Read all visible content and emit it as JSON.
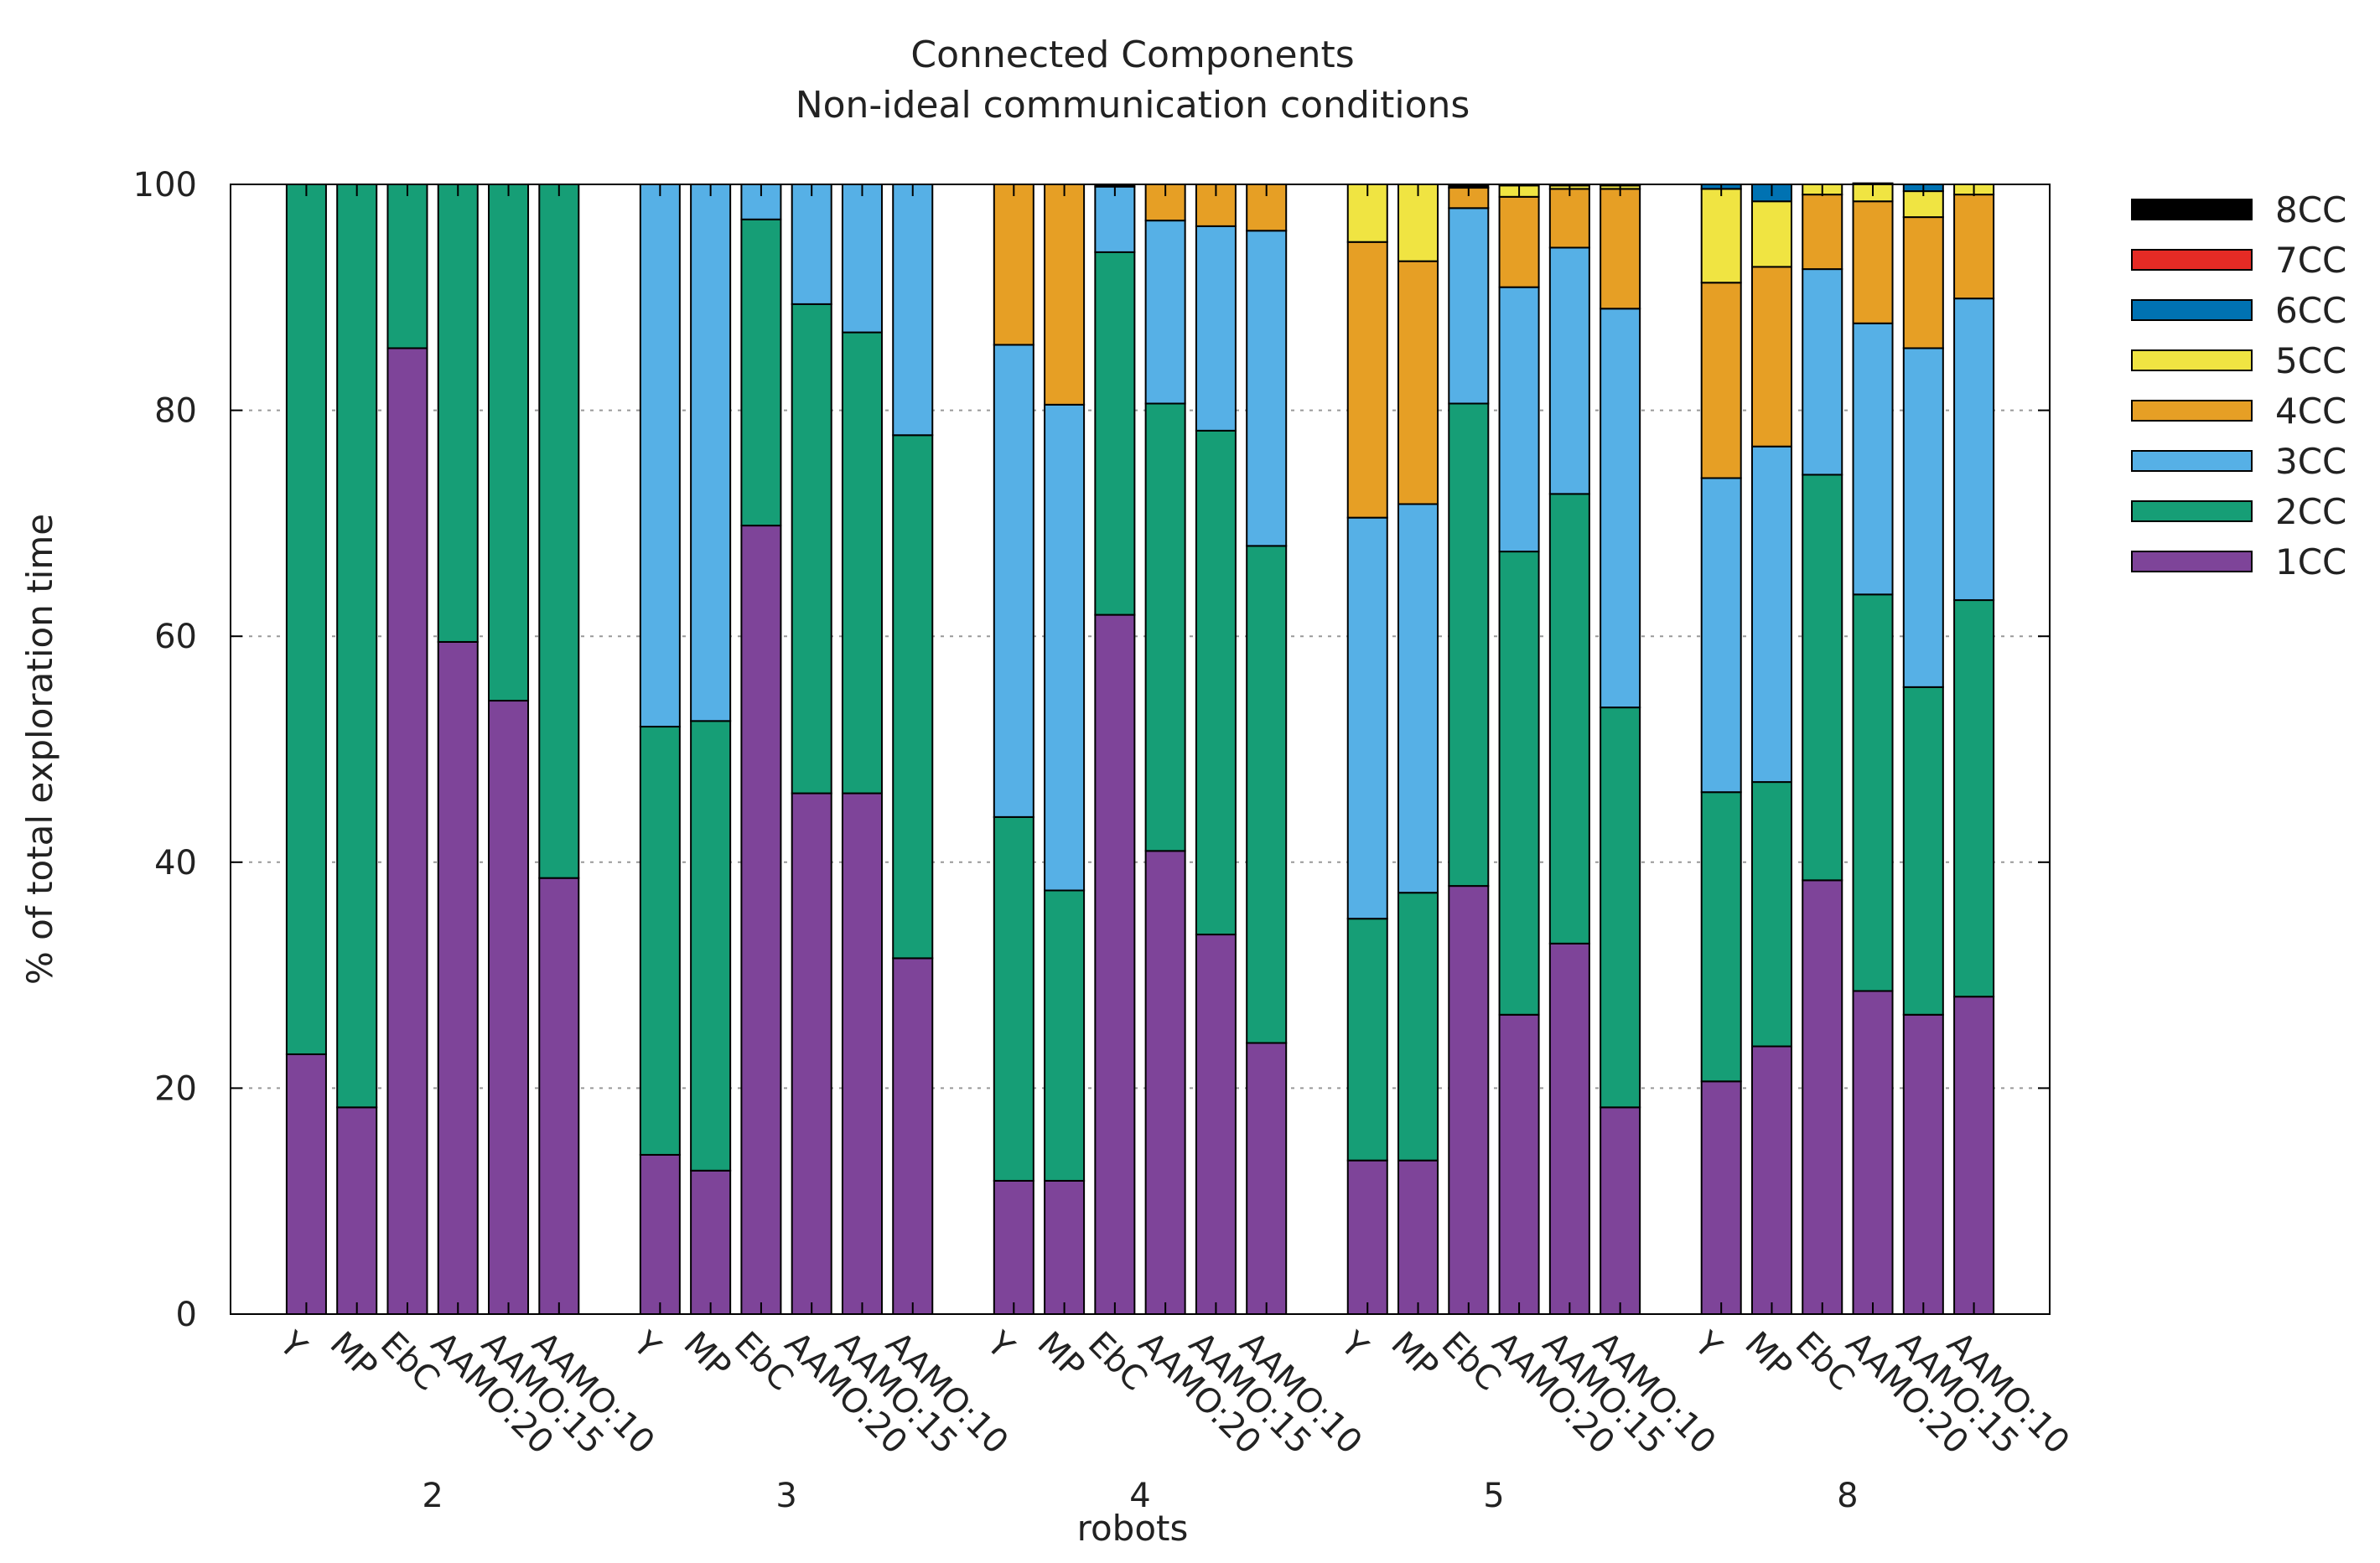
{
  "chart_data": {
    "type": "bar",
    "stacked": true,
    "title": "Connected Components",
    "subtitle": "Non-ideal communication conditions",
    "xlabel": "robots",
    "ylabel": "% of total exploration time",
    "ylim": [
      0,
      100
    ],
    "yticks": [
      0,
      20,
      40,
      60,
      80,
      100
    ],
    "grid": true,
    "legend_position": "right",
    "categories": [
      "Y",
      "MP",
      "EbC",
      "AAMO:20",
      "AAMO:15",
      "AAMO:10"
    ],
    "series": [
      {
        "name": "1CC",
        "color": "#7e4499"
      },
      {
        "name": "2CC",
        "color": "#169e76"
      },
      {
        "name": "3CC",
        "color": "#56b0e6"
      },
      {
        "name": "4CC",
        "color": "#e69f25"
      },
      {
        "name": "5CC",
        "color": "#f0e442"
      },
      {
        "name": "6CC",
        "color": "#0072b2"
      },
      {
        "name": "7CC",
        "color": "#e52b25"
      },
      {
        "name": "8CC",
        "color": "#000000"
      }
    ],
    "groups": [
      {
        "label": "2",
        "bars": [
          [
            23,
            77,
            0,
            0,
            0,
            0,
            0,
            0
          ],
          [
            18.3,
            81.7,
            0,
            0,
            0,
            0,
            0,
            0
          ],
          [
            85.5,
            14.5,
            0,
            0,
            0,
            0,
            0,
            0
          ],
          [
            59.5,
            40.5,
            0,
            0,
            0,
            0,
            0,
            0
          ],
          [
            54.3,
            45.7,
            0,
            0,
            0,
            0,
            0,
            0
          ],
          [
            38.6,
            61.4,
            0,
            0,
            0,
            0,
            0,
            0
          ]
        ]
      },
      {
        "label": "3",
        "bars": [
          [
            14.1,
            37.9,
            48,
            0,
            0,
            0,
            0,
            0
          ],
          [
            12.7,
            39.8,
            47.5,
            0,
            0,
            0,
            0,
            0
          ],
          [
            69.8,
            27.1,
            3.1,
            0,
            0,
            0,
            0,
            0
          ],
          [
            46.1,
            43.3,
            10.6,
            0,
            0,
            0,
            0,
            0
          ],
          [
            46.1,
            40.8,
            13.1,
            0,
            0,
            0,
            0,
            0
          ],
          [
            31.5,
            46.3,
            22.2,
            0,
            0,
            0,
            0,
            0
          ]
        ]
      },
      {
        "label": "4",
        "bars": [
          [
            11.8,
            32.2,
            41.8,
            14.2,
            0,
            0,
            0,
            0
          ],
          [
            11.8,
            25.7,
            43,
            19.5,
            0,
            0,
            0,
            0
          ],
          [
            61.9,
            32.1,
            5.8,
            0,
            0,
            0,
            0,
            0.2
          ],
          [
            41,
            39.6,
            16.2,
            3.2,
            0,
            0,
            0,
            0
          ],
          [
            33.6,
            44.6,
            18.1,
            3.7,
            0,
            0,
            0,
            0
          ],
          [
            24,
            44,
            27.9,
            4.1,
            0,
            0,
            0,
            0
          ]
        ]
      },
      {
        "label": "5",
        "bars": [
          [
            13.6,
            21.4,
            35.5,
            24.4,
            5.1,
            0,
            0,
            0
          ],
          [
            13.6,
            23.7,
            34.4,
            21.5,
            6.8,
            0,
            0,
            0
          ],
          [
            37.9,
            42.7,
            17.3,
            1.8,
            0,
            0,
            0,
            0.3
          ],
          [
            26.5,
            41,
            23.4,
            8,
            1,
            0,
            0,
            0.1
          ],
          [
            32.8,
            39.8,
            21.8,
            5.2,
            0.3,
            0,
            0,
            0.1
          ],
          [
            18.3,
            35.4,
            35.3,
            10.6,
            0.3,
            0,
            0,
            0.1
          ]
        ]
      },
      {
        "label": "8",
        "bars": [
          [
            20.6,
            25.6,
            27.8,
            17.3,
            8.3,
            0.4,
            0,
            0
          ],
          [
            23.7,
            23.4,
            29.7,
            15.9,
            5.8,
            1.5,
            0,
            0
          ],
          [
            38.4,
            35.9,
            18.2,
            6.6,
            0.9,
            0,
            0,
            0
          ],
          [
            28.6,
            35.1,
            24,
            10.8,
            1.6,
            0,
            0,
            0
          ],
          [
            26.5,
            29,
            30,
            11.6,
            2.3,
            0.6,
            0,
            0
          ],
          [
            28.1,
            35.1,
            26.7,
            9.2,
            0.9,
            0,
            0,
            0
          ]
        ]
      }
    ]
  }
}
